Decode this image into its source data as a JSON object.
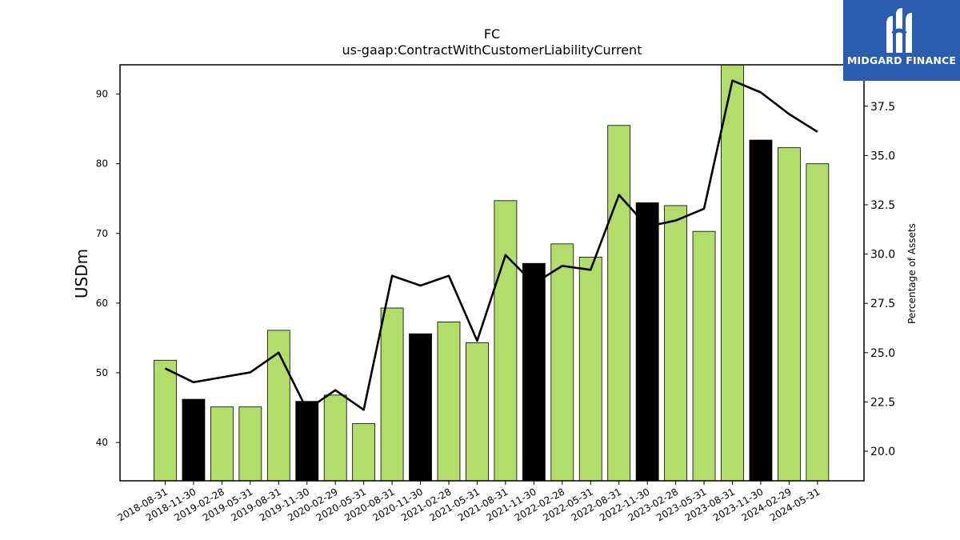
{
  "chart_data": {
    "type": "bar",
    "title": "FC",
    "subtitle": "us-gaap:ContractWithCustomerLiabilityCurrent",
    "ylabel": "USDm",
    "y2label": "Percentage of Assets",
    "ylim": [
      34.5,
      94.2
    ],
    "y2lim": [
      18.5,
      39.6
    ],
    "yticks": [
      40,
      50,
      60,
      70,
      80,
      90
    ],
    "y2ticks": [
      "20.0",
      "22.5",
      "25.0",
      "27.5",
      "30.0",
      "32.5",
      "35.0",
      "37.5"
    ],
    "categories": [
      "2018-08-31",
      "2018-11-30",
      "2019-02-28",
      "2019-05-31",
      "2019-08-31",
      "2019-11-30",
      "2020-02-29",
      "2020-05-31",
      "2020-08-31",
      "2020-11-30",
      "2021-02-28",
      "2021-05-31",
      "2021-08-31",
      "2021-11-30",
      "2022-02-28",
      "2022-05-31",
      "2022-08-31",
      "2022-11-30",
      "2023-02-28",
      "2023-05-31",
      "2023-08-31",
      "2023-11-30",
      "2024-02-29",
      "2024-05-31"
    ],
    "series": [
      {
        "kind": "bar",
        "values": [
          51.8,
          46.2,
          45.1,
          45.1,
          56.1,
          45.9,
          46.8,
          42.7,
          59.3,
          55.6,
          57.3,
          54.3,
          74.7,
          65.7,
          68.5,
          66.6,
          85.5,
          74.4,
          74.0,
          70.3,
          94.2,
          83.4,
          82.3,
          80.0
        ],
        "colors": [
          "#b2dd6a",
          "#000000",
          "#b2dd6a",
          "#b2dd6a",
          "#b2dd6a",
          "#000000",
          "#b2dd6a",
          "#b2dd6a",
          "#b2dd6a",
          "#000000",
          "#b2dd6a",
          "#b2dd6a",
          "#b2dd6a",
          "#000000",
          "#b2dd6a",
          "#b2dd6a",
          "#b2dd6a",
          "#000000",
          "#b2dd6a",
          "#b2dd6a",
          "#b2dd6a",
          "#000000",
          "#b2dd6a",
          "#b2dd6a"
        ]
      },
      {
        "kind": "line",
        "axis": "right",
        "color": "#000000",
        "values": [
          24.2,
          23.5,
          23.75,
          24.0,
          25.0,
          22.1,
          23.1,
          22.1,
          28.9,
          28.4,
          28.9,
          25.6,
          29.95,
          28.5,
          29.4,
          29.2,
          33.0,
          31.4,
          31.7,
          32.3,
          38.8,
          38.2,
          37.1,
          36.2
        ]
      }
    ],
    "grid": false
  },
  "logo": {
    "text": "MIDGARD FINANCE",
    "bg": "#2b5cae"
  }
}
